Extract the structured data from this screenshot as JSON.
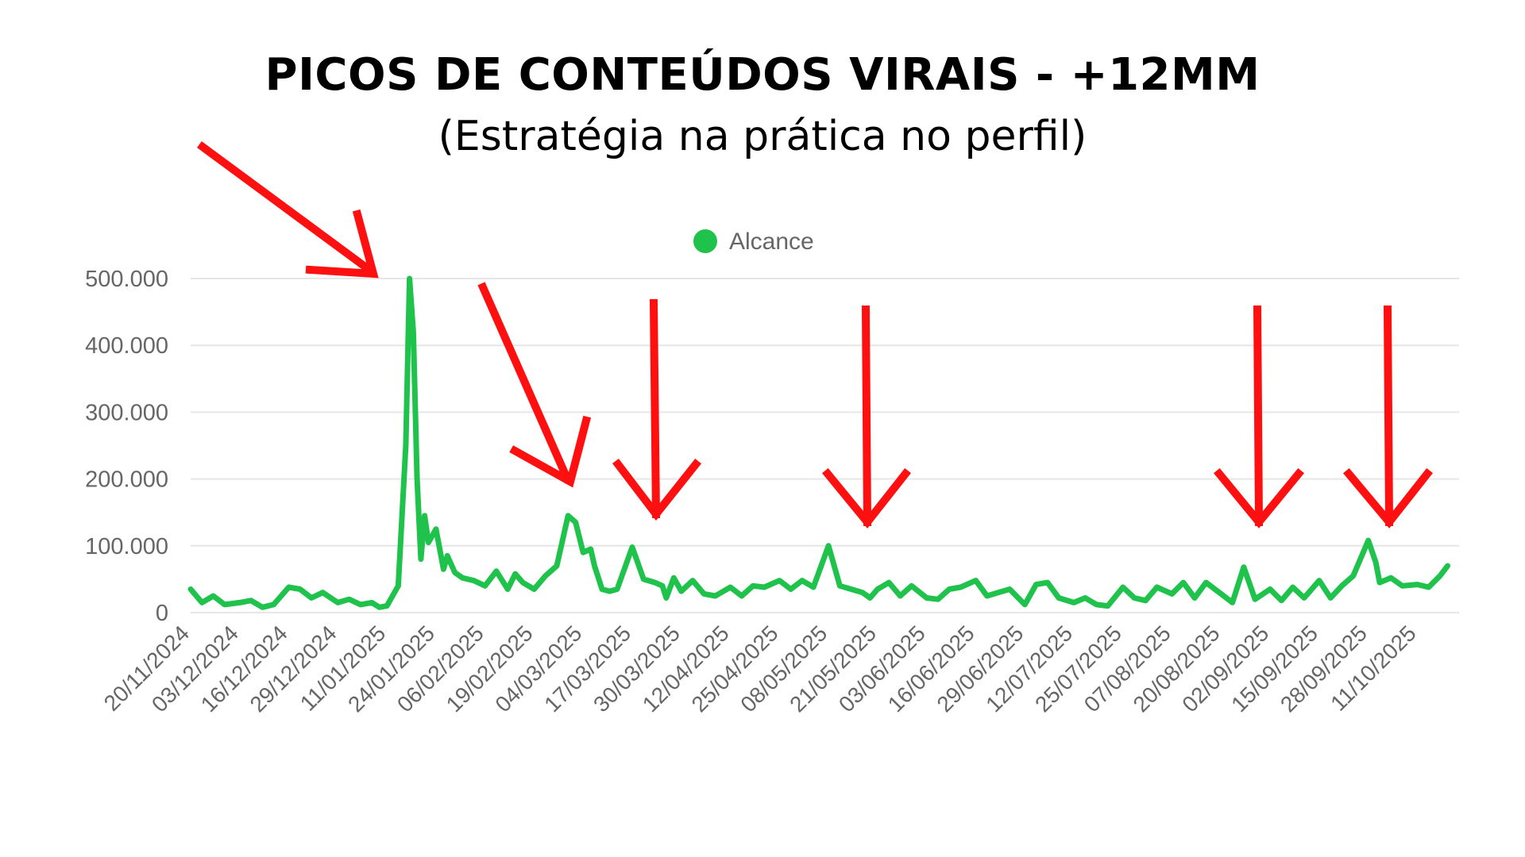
{
  "header": {
    "title": "PICOS DE CONTEÚDOS VIRAIS - +12MM",
    "subtitle": "(Estratégia na prática no perfil)"
  },
  "colors": {
    "series": "#1fc24a",
    "arrows": "#ff1010",
    "grid": "#e6e6e6",
    "text": "#666666"
  },
  "chart_data": {
    "type": "line",
    "title": "",
    "xlabel": "",
    "ylabel": "",
    "ylim": [
      0,
      500000
    ],
    "yticks": [
      0,
      100000,
      200000,
      300000,
      400000,
      500000
    ],
    "ytick_labels": [
      "0",
      "100.000",
      "200.000",
      "300.000",
      "400.000",
      "500.000"
    ],
    "xtick_labels": [
      "20/11/2024",
      "03/12/2024",
      "16/12/2024",
      "29/12/2024",
      "11/01/2025",
      "24/01/2025",
      "06/02/2025",
      "19/02/2025",
      "04/03/2025",
      "17/03/2025",
      "30/03/2025",
      "12/04/2025",
      "25/04/2025",
      "08/05/2025",
      "21/05/2025",
      "03/06/2025",
      "16/06/2025",
      "29/06/2025",
      "12/07/2025",
      "25/07/2025",
      "07/08/2025",
      "20/08/2025",
      "02/09/2025",
      "15/09/2025",
      "28/09/2025",
      "11/10/2025"
    ],
    "grid": true,
    "legend_position": "top",
    "series": [
      {
        "name": "Alcance",
        "color": "#1fc24a",
        "x": [
          "20/11/2024",
          "23/11/2024",
          "26/11/2024",
          "29/11/2024",
          "03/12/2024",
          "06/12/2024",
          "09/12/2024",
          "12/12/2024",
          "16/12/2024",
          "19/12/2024",
          "22/12/2024",
          "25/12/2024",
          "29/12/2024",
          "01/01/2025",
          "04/01/2025",
          "07/01/2025",
          "09/01/2025",
          "11/01/2025",
          "14/01/2025",
          "16/01/2025",
          "17/01/2025",
          "18/01/2025",
          "19/01/2025",
          "20/01/2025",
          "21/01/2025",
          "22/01/2025",
          "24/01/2025",
          "26/01/2025",
          "27/01/2025",
          "29/01/2025",
          "31/01/2025",
          "03/02/2025",
          "06/02/2025",
          "09/02/2025",
          "12/02/2025",
          "14/02/2025",
          "16/02/2025",
          "19/02/2025",
          "22/02/2025",
          "25/02/2025",
          "28/02/2025",
          "02/03/2025",
          "04/03/2025",
          "06/03/2025",
          "07/03/2025",
          "09/03/2025",
          "11/03/2025",
          "13/03/2025",
          "17/03/2025",
          "20/03/2025",
          "23/03/2025",
          "25/03/2025",
          "26/03/2025",
          "28/03/2025",
          "30/03/2025",
          "02/04/2025",
          "05/04/2025",
          "08/04/2025",
          "12/04/2025",
          "15/04/2025",
          "18/04/2025",
          "21/04/2025",
          "25/04/2025",
          "28/04/2025",
          "01/05/2025",
          "04/05/2025",
          "08/05/2025",
          "11/05/2025",
          "14/05/2025",
          "17/05/2025",
          "19/05/2025",
          "21/05/2025",
          "24/05/2025",
          "27/05/2025",
          "30/05/2025",
          "03/06/2025",
          "06/06/2025",
          "09/06/2025",
          "12/06/2025",
          "16/06/2025",
          "19/06/2025",
          "22/06/2025",
          "25/06/2025",
          "29/06/2025",
          "02/07/2025",
          "05/07/2025",
          "08/07/2025",
          "12/07/2025",
          "15/07/2025",
          "18/07/2025",
          "21/07/2025",
          "25/07/2025",
          "28/07/2025",
          "31/07/2025",
          "03/08/2025",
          "07/08/2025",
          "10/08/2025",
          "13/08/2025",
          "16/08/2025",
          "20/08/2025",
          "23/08/2025",
          "26/08/2025",
          "29/08/2025",
          "02/09/2025",
          "05/09/2025",
          "08/09/2025",
          "11/09/2025",
          "15/09/2025",
          "18/09/2025",
          "21/09/2025",
          "24/09/2025",
          "28/09/2025",
          "30/09/2025",
          "01/10/2025",
          "04/10/2025",
          "07/10/2025",
          "11/10/2025",
          "14/10/2025",
          "17/10/2025",
          "19/10/2025"
        ],
        "values": [
          35000,
          15000,
          25000,
          12000,
          15000,
          18000,
          8000,
          12000,
          38000,
          35000,
          22000,
          30000,
          15000,
          20000,
          12000,
          15000,
          8000,
          10000,
          40000,
          250000,
          500000,
          420000,
          200000,
          80000,
          145000,
          105000,
          125000,
          65000,
          85000,
          60000,
          52000,
          48000,
          40000,
          62000,
          35000,
          58000,
          45000,
          35000,
          55000,
          70000,
          145000,
          135000,
          90000,
          95000,
          70000,
          35000,
          32000,
          35000,
          98000,
          50000,
          45000,
          40000,
          22000,
          52000,
          32000,
          48000,
          28000,
          25000,
          38000,
          25000,
          40000,
          38000,
          48000,
          35000,
          48000,
          38000,
          100000,
          40000,
          35000,
          30000,
          22000,
          35000,
          45000,
          25000,
          40000,
          22000,
          20000,
          35000,
          38000,
          48000,
          25000,
          30000,
          35000,
          12000,
          42000,
          45000,
          22000,
          15000,
          22000,
          12000,
          10000,
          38000,
          22000,
          18000,
          38000,
          28000,
          45000,
          22000,
          45000,
          28000,
          15000,
          68000,
          20000,
          35000,
          18000,
          38000,
          22000,
          48000,
          22000,
          40000,
          55000,
          108000,
          75000,
          45000,
          52000,
          40000,
          42000,
          38000,
          55000,
          70000
        ]
      }
    ]
  }
}
